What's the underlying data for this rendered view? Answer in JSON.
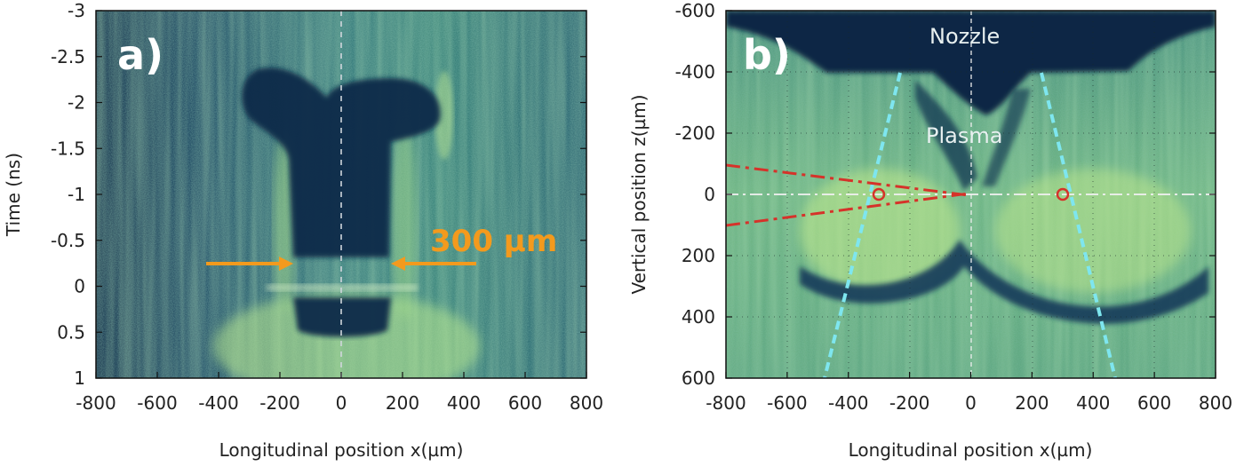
{
  "colors": {
    "background_dark": "#0d2a4a",
    "background_green": "#4f9a7a",
    "bright_green": "#c8ee8c",
    "orange": "#f39a1d",
    "cyan": "#7ee6ef",
    "red": "#d6322a",
    "white_dash": "#e6e6e6"
  },
  "panels": [
    {
      "label": "a)",
      "xlabel": "Longitudinal position x(µm)",
      "ylabel": "Time (ns)",
      "xticks": [
        "-800",
        "-600",
        "-400",
        "-200",
        "0",
        "200",
        "400",
        "600",
        "800"
      ],
      "yticks": [
        "-3",
        "-2.5",
        "-2",
        "-1.5",
        "-1",
        "-0.5",
        "0",
        "0.5",
        "1"
      ],
      "xlim": [
        -800,
        800
      ],
      "ylim": [
        -3,
        1
      ],
      "annotation": "300 µm"
    },
    {
      "label": "b)",
      "xlabel": "Longitudinal position x(µm)",
      "ylabel": "Vertical position z(µm)",
      "xticks": [
        "-800",
        "-600",
        "-400",
        "-200",
        "0",
        "200",
        "400",
        "600",
        "800"
      ],
      "yticks": [
        "-600",
        "-400",
        "-200",
        "0",
        "200",
        "400",
        "600"
      ],
      "xlim": [
        -800,
        800
      ],
      "ylim": [
        -600,
        600
      ],
      "nozzle_label": "Nozzle",
      "plasma_label": "Plasma"
    }
  ]
}
